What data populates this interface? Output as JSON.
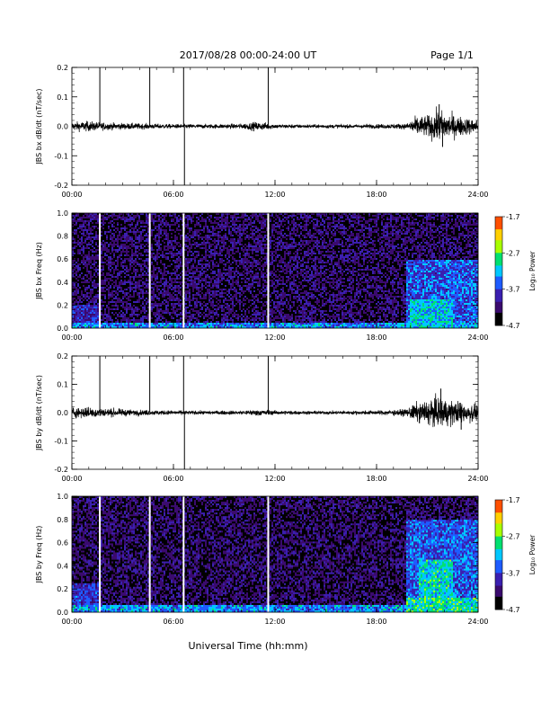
{
  "header": {
    "title": "2017/08/28  00:00-24:00 UT",
    "page": "Page 1/1"
  },
  "footer": {
    "xlabel": "Universal Time (hh:mm)"
  },
  "colors": {
    "trace": "#000000",
    "marker_on_spectrogram": "#ffffff",
    "colormap": [
      "#000000",
      "#3a0a6e",
      "#3a1fb0",
      "#1e5cff",
      "#00c8ff",
      "#00e070",
      "#a8ff00",
      "#ffd000",
      "#ff5000",
      "#ff0000"
    ]
  },
  "chart_data": [
    {
      "type": "line",
      "ylabel": "JBS bx dB/dt (nT/sec)",
      "xlim": [
        0,
        24
      ],
      "ylim": [
        -0.2,
        0.2
      ],
      "x_ticks": [
        "00:00",
        "06:00",
        "12:00",
        "18:00",
        "24:00"
      ],
      "y_ticks": [
        "0.2",
        "0.1",
        "0.0",
        "-0.1",
        "-0.2"
      ],
      "marker_hours": [
        1.65,
        4.6,
        6.6,
        11.6
      ],
      "noise_envelope": {
        "hours": [
          0,
          1,
          2,
          4,
          6,
          8,
          10,
          10.8,
          11.5,
          12,
          14,
          16,
          18,
          19.8,
          20.2,
          21,
          21.7,
          22.5,
          23.5,
          24
        ],
        "amplitude": [
          0.012,
          0.014,
          0.01,
          0.008,
          0.006,
          0.006,
          0.007,
          0.012,
          0.01,
          0.006,
          0.005,
          0.005,
          0.006,
          0.008,
          0.025,
          0.03,
          0.045,
          0.032,
          0.022,
          0.018
        ]
      },
      "spikes": [
        {
          "hour": 1.65,
          "value": 0.2
        },
        {
          "hour": 4.6,
          "value": 0.2
        },
        {
          "hour": 6.6,
          "value": 0.2
        },
        {
          "hour": 6.65,
          "value": -0.2
        },
        {
          "hour": 11.6,
          "value": 0.2
        },
        {
          "hour": 21.7,
          "value": 0.075
        },
        {
          "hour": 21.9,
          "value": -0.07
        }
      ]
    },
    {
      "type": "heatmap",
      "ylabel": "JBS bx Freq (Hz)",
      "xlim": [
        0,
        24
      ],
      "ylim": [
        0,
        1.0
      ],
      "x_ticks": [
        "00:00",
        "06:00",
        "12:00",
        "18:00",
        "24:00"
      ],
      "y_ticks": [
        "1.0",
        "0.8",
        "0.6",
        "0.4",
        "0.2",
        "0.0"
      ],
      "marker_hours": [
        1.65,
        4.6,
        6.6,
        11.6
      ],
      "colorbar": {
        "label": "Log₁₀ Power",
        "range": [
          -4.7,
          -1.7
        ],
        "ticks": [
          "-1.7",
          "-2.7",
          "-3.7",
          "-4.7"
        ]
      },
      "activity_regions": [
        {
          "hours": [
            0,
            1.6
          ],
          "freq": [
            0,
            0.2
          ],
          "log_power": -3.9
        },
        {
          "hours": [
            0,
            24
          ],
          "freq": [
            0,
            0.05
          ],
          "log_power": -3.4
        },
        {
          "hours": [
            19.7,
            24
          ],
          "freq": [
            0,
            0.6
          ],
          "log_power": -3.6
        },
        {
          "hours": [
            20,
            22.5
          ],
          "freq": [
            0,
            0.25
          ],
          "log_power": -3.2
        }
      ]
    },
    {
      "type": "line",
      "ylabel": "JBS by dB/dt (nT/sec)",
      "xlim": [
        0,
        24
      ],
      "ylim": [
        -0.2,
        0.2
      ],
      "x_ticks": [
        "00:00",
        "06:00",
        "12:00",
        "18:00",
        "24:00"
      ],
      "y_ticks": [
        "0.2",
        "0.1",
        "0.0",
        "-0.1",
        "-0.2"
      ],
      "marker_hours": [
        1.65,
        4.6,
        6.6,
        11.6
      ],
      "noise_envelope": {
        "hours": [
          0,
          1,
          2,
          3,
          4,
          6,
          8,
          10,
          11,
          12,
          14,
          16,
          18,
          19.8,
          20.2,
          21,
          21.8,
          22.5,
          23.5,
          24
        ],
        "amplitude": [
          0.015,
          0.016,
          0.012,
          0.01,
          0.008,
          0.006,
          0.005,
          0.006,
          0.009,
          0.006,
          0.005,
          0.005,
          0.006,
          0.01,
          0.025,
          0.035,
          0.045,
          0.035,
          0.03,
          0.02
        ]
      },
      "spikes": [
        {
          "hour": 1.65,
          "value": 0.2
        },
        {
          "hour": 4.6,
          "value": 0.2
        },
        {
          "hour": 6.6,
          "value": 0.2
        },
        {
          "hour": 6.65,
          "value": -0.2
        },
        {
          "hour": 11.6,
          "value": 0.2
        },
        {
          "hour": 21.8,
          "value": 0.085
        },
        {
          "hour": 23.0,
          "value": -0.06
        }
      ]
    },
    {
      "type": "heatmap",
      "ylabel": "JBS by Freq (Hz)",
      "xlim": [
        0,
        24
      ],
      "ylim": [
        0,
        1.0
      ],
      "x_ticks": [
        "00:00",
        "06:00",
        "12:00",
        "18:00",
        "24:00"
      ],
      "y_ticks": [
        "1.0",
        "0.8",
        "0.6",
        "0.4",
        "0.2",
        "0.0"
      ],
      "marker_hours": [
        1.65,
        4.6,
        6.6,
        11.6
      ],
      "colorbar": {
        "label": "Log₁₀ Power",
        "range": [
          -4.7,
          -1.7
        ],
        "ticks": [
          "-1.7",
          "-2.7",
          "-3.7",
          "-4.7"
        ]
      },
      "activity_regions": [
        {
          "hours": [
            0,
            1.6
          ],
          "freq": [
            0,
            0.25
          ],
          "log_power": -3.8
        },
        {
          "hours": [
            0,
            24
          ],
          "freq": [
            0,
            0.06
          ],
          "log_power": -3.4
        },
        {
          "hours": [
            19.7,
            24
          ],
          "freq": [
            0,
            0.8
          ],
          "log_power": -3.6
        },
        {
          "hours": [
            20.5,
            22.5
          ],
          "freq": [
            0.1,
            0.45
          ],
          "log_power": -3.1
        },
        {
          "hours": [
            19.8,
            24
          ],
          "freq": [
            0,
            0.12
          ],
          "log_power": -3.0
        }
      ]
    }
  ]
}
